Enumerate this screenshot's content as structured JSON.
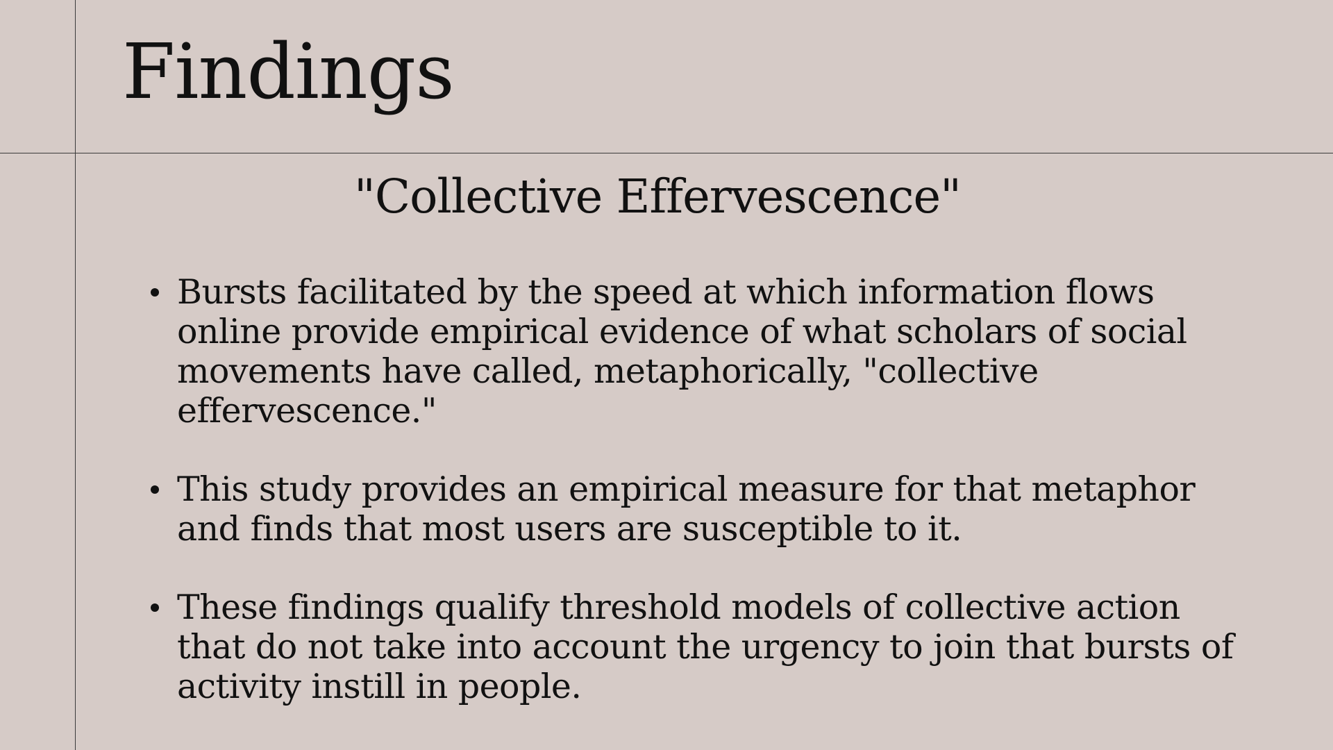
{
  "slide": {
    "title": "Findings",
    "subtitle": "\"Collective Effervescence\"",
    "bullets": [
      "Bursts facilitated by the speed at which information flows online provide empirical evidence of what scholars of social movements have called, metaphorically, \"collective effervescence.\"",
      "This study provides an empirical measure for that metaphor and finds that most users are susceptible to it.",
      "These findings qualify threshold models of collective action that do not take into account the urgency to join that bursts of activity instill in people."
    ]
  },
  "colors": {
    "background": "#d6cbc7",
    "text": "#111111",
    "rules": "#3a3a3a"
  }
}
